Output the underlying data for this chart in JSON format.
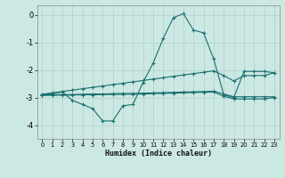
{
  "xlabel": "Humidex (Indice chaleur)",
  "background_color": "#cce8e3",
  "grid_color": "#afd0cc",
  "line_color": "#1a7070",
  "xlim": [
    -0.5,
    23.5
  ],
  "ylim": [
    -4.5,
    0.35
  ],
  "x_ticks": [
    0,
    1,
    2,
    3,
    4,
    5,
    6,
    7,
    8,
    9,
    10,
    11,
    12,
    13,
    14,
    15,
    16,
    17,
    18,
    19,
    20,
    21,
    22,
    23
  ],
  "y_ticks": [
    0,
    -1,
    -2,
    -3,
    -4
  ],
  "s1_x": [
    0,
    1,
    2,
    3,
    4,
    5,
    6,
    7,
    8,
    9,
    10,
    11,
    12,
    13,
    14,
    15,
    16,
    17,
    18,
    19,
    20,
    21,
    22,
    23
  ],
  "s1_y": [
    -2.9,
    -2.85,
    -2.8,
    -3.1,
    -3.25,
    -3.4,
    -3.85,
    -3.85,
    -3.3,
    -3.25,
    -2.45,
    -1.75,
    -0.85,
    -0.1,
    0.05,
    -0.55,
    -0.65,
    -1.6,
    -2.9,
    -3.0,
    -2.05,
    -2.05,
    -2.05,
    -2.1
  ],
  "s2_x": [
    0,
    1,
    2,
    3,
    4,
    5,
    6,
    7,
    8,
    9,
    10,
    11,
    12,
    13,
    14,
    15,
    16,
    17,
    18,
    19,
    20,
    21,
    22,
    23
  ],
  "s2_y": [
    -2.88,
    -2.83,
    -2.78,
    -2.73,
    -2.68,
    -2.63,
    -2.58,
    -2.53,
    -2.48,
    -2.43,
    -2.38,
    -2.33,
    -2.28,
    -2.23,
    -2.18,
    -2.13,
    -2.08,
    -2.03,
    -2.2,
    -2.4,
    -2.2,
    -2.2,
    -2.2,
    -2.1
  ],
  "s3_x": [
    0,
    1,
    2,
    3,
    4,
    5,
    6,
    7,
    8,
    9,
    10,
    11,
    12,
    13,
    14,
    15,
    16,
    17,
    18,
    19,
    20,
    21,
    22,
    23
  ],
  "s3_y": [
    -2.92,
    -2.92,
    -2.91,
    -2.91,
    -2.9,
    -2.9,
    -2.89,
    -2.89,
    -2.88,
    -2.88,
    -2.87,
    -2.86,
    -2.85,
    -2.84,
    -2.83,
    -2.82,
    -2.81,
    -2.8,
    -2.95,
    -3.05,
    -3.05,
    -3.05,
    -3.05,
    -3.0
  ],
  "s4_x": [
    0,
    1,
    2,
    3,
    4,
    5,
    6,
    7,
    8,
    9,
    10,
    11,
    12,
    13,
    14,
    15,
    16,
    17,
    18,
    19,
    20,
    21,
    22,
    23
  ],
  "s4_y": [
    -2.9,
    -2.9,
    -2.89,
    -2.89,
    -2.88,
    -2.87,
    -2.87,
    -2.86,
    -2.85,
    -2.85,
    -2.84,
    -2.83,
    -2.82,
    -2.81,
    -2.8,
    -2.79,
    -2.78,
    -2.77,
    -2.87,
    -2.97,
    -2.97,
    -2.97,
    -2.97,
    -2.97
  ]
}
